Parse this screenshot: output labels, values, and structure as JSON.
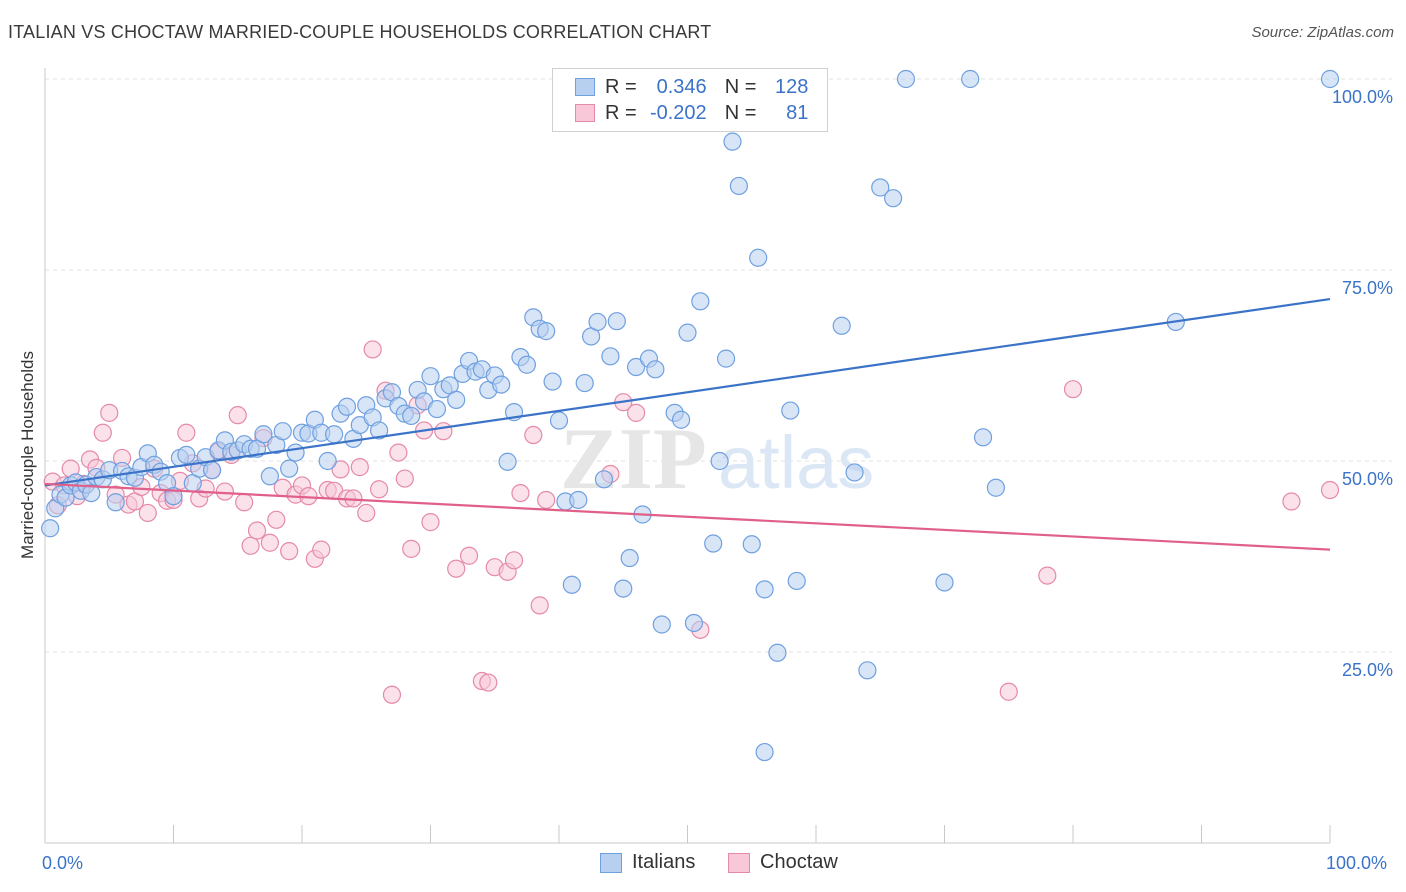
{
  "title": "ITALIAN VS CHOCTAW MARRIED-COUPLE HOUSEHOLDS CORRELATION CHART",
  "source": "Source: ZipAtlas.com",
  "watermark": "ZIPatlas",
  "legend": {
    "rows": [
      {
        "r_label": "R =",
        "r_value": "0.346",
        "n_label": "N =",
        "n_value": "128",
        "color": "#6fa0e0",
        "fill": "#b8d0f0"
      },
      {
        "r_label": "R =",
        "r_value": "-0.202",
        "n_label": "N =",
        "n_value": "81",
        "color": "#e58aa8",
        "fill": "#f8c8d8"
      }
    ]
  },
  "bottom_legend": [
    {
      "label": "Italians",
      "color": "#6fa0e0",
      "fill": "#b8d0f0"
    },
    {
      "label": "Choctaw",
      "color": "#e58aa8",
      "fill": "#f8c8d8"
    }
  ],
  "chart_data": {
    "type": "scatter",
    "title": "ITALIAN VS CHOCTAW MARRIED-COUPLE HOUSEHOLDS CORRELATION CHART",
    "xlabel": "",
    "ylabel": "Married-couple Households",
    "xlim": [
      0,
      100
    ],
    "ylim": [
      0,
      100
    ],
    "x_tick_labels": [
      "0.0%",
      "100.0%"
    ],
    "y_tick_labels": [
      "25.0%",
      "50.0%",
      "75.0%",
      "100.0%"
    ],
    "y_ticks": [
      25,
      50,
      75,
      100
    ],
    "grid": true,
    "legend_position": "top-center",
    "series": [
      {
        "name": "Italians",
        "color": "#3b73c8",
        "marker_stroke": "#6fa0e0",
        "marker_fill": "#b8d0f0",
        "trend": {
          "x": [
            0,
            100
          ],
          "y": [
            46.8,
            71.2
          ]
        },
        "points": [
          [
            0.4,
            41.2
          ],
          [
            0.8,
            43.8
          ],
          [
            1.2,
            45.6
          ],
          [
            1.6,
            45.2
          ],
          [
            2.0,
            46.8
          ],
          [
            2.4,
            47.2
          ],
          [
            2.8,
            46.1
          ],
          [
            3.2,
            46.9
          ],
          [
            3.6,
            45.8
          ],
          [
            4.0,
            47.9
          ],
          [
            4.5,
            47.6
          ],
          [
            5.0,
            48.8
          ],
          [
            5.5,
            44.6
          ],
          [
            6.0,
            48.7
          ],
          [
            6.5,
            48.0
          ],
          [
            7.0,
            47.8
          ],
          [
            7.5,
            49.2
          ],
          [
            8.0,
            51.0
          ],
          [
            8.5,
            49.5
          ],
          [
            9.0,
            48.6
          ],
          [
            9.5,
            47.1
          ],
          [
            10.0,
            45.4
          ],
          [
            10.5,
            50.4
          ],
          [
            11.0,
            50.8
          ],
          [
            11.5,
            47.1
          ],
          [
            12.0,
            49.0
          ],
          [
            12.5,
            50.5
          ],
          [
            13.0,
            48.8
          ],
          [
            13.5,
            51.4
          ],
          [
            14.0,
            52.7
          ],
          [
            14.5,
            51.2
          ],
          [
            15.0,
            51.4
          ],
          [
            15.5,
            52.2
          ],
          [
            16.0,
            51.6
          ],
          [
            16.5,
            51.6
          ],
          [
            17.0,
            53.5
          ],
          [
            17.5,
            48.0
          ],
          [
            18.0,
            52.1
          ],
          [
            18.5,
            53.9
          ],
          [
            19.0,
            49.0
          ],
          [
            19.5,
            51.1
          ],
          [
            20.0,
            53.7
          ],
          [
            20.5,
            53.6
          ],
          [
            21.0,
            55.4
          ],
          [
            21.5,
            53.7
          ],
          [
            22.0,
            50.0
          ],
          [
            22.5,
            53.5
          ],
          [
            23.0,
            56.2
          ],
          [
            23.5,
            57.1
          ],
          [
            24.0,
            52.9
          ],
          [
            24.5,
            54.7
          ],
          [
            25.0,
            57.3
          ],
          [
            25.5,
            55.7
          ],
          [
            26.0,
            54.0
          ],
          [
            26.5,
            58.2
          ],
          [
            27.0,
            59.0
          ],
          [
            27.5,
            57.2
          ],
          [
            28.0,
            56.2
          ],
          [
            28.5,
            55.9
          ],
          [
            29.0,
            59.3
          ],
          [
            29.5,
            57.8
          ],
          [
            30.0,
            61.1
          ],
          [
            30.5,
            56.8
          ],
          [
            31.0,
            59.4
          ],
          [
            31.5,
            59.9
          ],
          [
            32.0,
            58.0
          ],
          [
            32.5,
            61.4
          ],
          [
            33.0,
            63.1
          ],
          [
            33.5,
            61.7
          ],
          [
            34.0,
            62.0
          ],
          [
            34.5,
            59.3
          ],
          [
            35.0,
            61.2
          ],
          [
            35.5,
            60.0
          ],
          [
            36.0,
            49.9
          ],
          [
            36.5,
            56.4
          ],
          [
            37.0,
            63.6
          ],
          [
            37.5,
            62.6
          ],
          [
            38.0,
            68.8
          ],
          [
            38.5,
            67.3
          ],
          [
            39.0,
            67.0
          ],
          [
            39.5,
            60.4
          ],
          [
            40.0,
            55.3
          ],
          [
            40.5,
            44.7
          ],
          [
            41.0,
            33.8
          ],
          [
            41.5,
            44.9
          ],
          [
            42.0,
            60.2
          ],
          [
            42.5,
            66.3
          ],
          [
            43.0,
            68.2
          ],
          [
            43.5,
            47.6
          ],
          [
            44.0,
            63.7
          ],
          [
            44.5,
            68.3
          ],
          [
            45.0,
            33.3
          ],
          [
            45.5,
            37.3
          ],
          [
            46.0,
            62.3
          ],
          [
            46.5,
            43.0
          ],
          [
            47.0,
            63.4
          ],
          [
            47.5,
            62.0
          ],
          [
            48.0,
            28.6
          ],
          [
            49.0,
            56.3
          ],
          [
            49.5,
            55.4
          ],
          [
            50.0,
            66.8
          ],
          [
            50.5,
            28.8
          ],
          [
            51.0,
            70.9
          ],
          [
            52.0,
            39.2
          ],
          [
            52.5,
            50.0
          ],
          [
            53.0,
            63.4
          ],
          [
            53.5,
            91.8
          ],
          [
            54.0,
            86.0
          ],
          [
            54.5,
            100.0
          ],
          [
            55.0,
            39.1
          ],
          [
            55.5,
            76.6
          ],
          [
            56.0,
            33.2
          ],
          [
            57.0,
            24.9
          ],
          [
            58.0,
            56.6
          ],
          [
            58.5,
            34.3
          ],
          [
            62.0,
            67.7
          ],
          [
            63.0,
            48.5
          ],
          [
            64.0,
            22.6
          ],
          [
            65.0,
            85.8
          ],
          [
            66.0,
            84.4
          ],
          [
            67.0,
            100.0
          ],
          [
            70.0,
            34.1
          ],
          [
            72.0,
            100.0
          ],
          [
            73.0,
            53.1
          ],
          [
            74.0,
            46.5
          ],
          [
            88.0,
            68.2
          ],
          [
            100.0,
            100.0
          ],
          [
            56.0,
            11.9
          ]
        ]
      },
      {
        "name": "Choctaw",
        "color": "#e0608a",
        "marker_stroke": "#e58aa8",
        "marker_fill": "#f8c8d8",
        "trend": {
          "x": [
            0,
            100
          ],
          "y": [
            47.0,
            38.4
          ]
        },
        "points": [
          [
            0.6,
            47.3
          ],
          [
            1.0,
            44.2
          ],
          [
            1.5,
            46.8
          ],
          [
            2.0,
            49.0
          ],
          [
            2.5,
            45.4
          ],
          [
            3.0,
            47.0
          ],
          [
            3.5,
            50.2
          ],
          [
            4.0,
            49.1
          ],
          [
            4.5,
            53.7
          ],
          [
            5.0,
            56.3
          ],
          [
            5.5,
            45.6
          ],
          [
            6.0,
            50.4
          ],
          [
            6.5,
            44.3
          ],
          [
            7.0,
            44.7
          ],
          [
            7.5,
            46.6
          ],
          [
            8.0,
            43.2
          ],
          [
            8.5,
            49.0
          ],
          [
            9.0,
            45.8
          ],
          [
            9.5,
            44.8
          ],
          [
            10.0,
            44.9
          ],
          [
            10.5,
            47.4
          ],
          [
            11.0,
            53.7
          ],
          [
            11.5,
            49.7
          ],
          [
            12.0,
            45.1
          ],
          [
            12.5,
            46.4
          ],
          [
            13.0,
            48.8
          ],
          [
            13.5,
            51.2
          ],
          [
            14.0,
            46.0
          ],
          [
            14.5,
            50.8
          ],
          [
            15.0,
            56.0
          ],
          [
            15.5,
            44.6
          ],
          [
            16.0,
            38.9
          ],
          [
            16.5,
            40.9
          ],
          [
            17.0,
            53.0
          ],
          [
            17.5,
            39.3
          ],
          [
            18.0,
            42.3
          ],
          [
            18.5,
            46.5
          ],
          [
            19.0,
            38.2
          ],
          [
            19.5,
            45.6
          ],
          [
            20.0,
            46.8
          ],
          [
            20.5,
            45.4
          ],
          [
            21.0,
            37.2
          ],
          [
            21.5,
            38.4
          ],
          [
            22.0,
            46.2
          ],
          [
            22.5,
            46.1
          ],
          [
            23.0,
            48.9
          ],
          [
            23.5,
            45.1
          ],
          [
            24.0,
            45.1
          ],
          [
            24.5,
            49.2
          ],
          [
            25.0,
            43.2
          ],
          [
            25.5,
            64.6
          ],
          [
            26.0,
            46.3
          ],
          [
            26.5,
            59.2
          ],
          [
            27.0,
            19.4
          ],
          [
            27.5,
            51.1
          ],
          [
            28.0,
            47.7
          ],
          [
            28.5,
            38.5
          ],
          [
            29.0,
            57.3
          ],
          [
            29.5,
            54.0
          ],
          [
            30.0,
            42.0
          ],
          [
            31.0,
            53.9
          ],
          [
            32.0,
            35.9
          ],
          [
            33.0,
            37.6
          ],
          [
            34.0,
            21.2
          ],
          [
            34.5,
            21.0
          ],
          [
            35.0,
            36.1
          ],
          [
            36.0,
            35.5
          ],
          [
            36.5,
            37.0
          ],
          [
            37.0,
            45.8
          ],
          [
            38.0,
            53.4
          ],
          [
            38.5,
            31.1
          ],
          [
            39.0,
            44.9
          ],
          [
            44.0,
            48.3
          ],
          [
            45.0,
            57.7
          ],
          [
            46.0,
            56.3
          ],
          [
            51.0,
            27.9
          ],
          [
            75.0,
            19.8
          ],
          [
            78.0,
            35.0
          ],
          [
            80.0,
            59.4
          ],
          [
            97.0,
            44.7
          ],
          [
            100.0,
            46.2
          ]
        ]
      }
    ]
  }
}
